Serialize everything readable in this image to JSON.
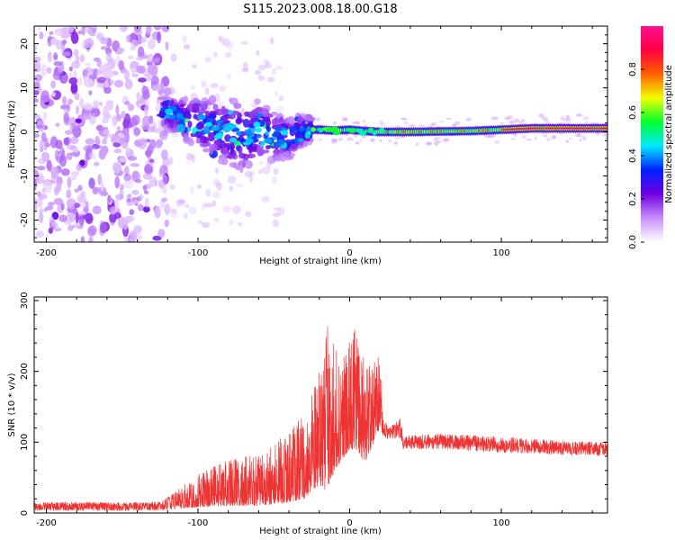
{
  "figure": {
    "title": "S115.2023.008.18.00.G18"
  },
  "chart_data": [
    {
      "type": "heatmap",
      "xlabel": "Height of straight line (km)",
      "ylabel": "Frequency (Hz)",
      "xlim": [
        -208,
        170
      ],
      "ylim": [
        -25,
        24
      ],
      "x_ticks": [
        -200,
        -100,
        0,
        100
      ],
      "y_ticks": [
        -20,
        -10,
        0,
        10,
        20
      ],
      "colorbar": {
        "label": "Normalized spectral amplitude",
        "range": [
          0.0,
          1.0
        ],
        "ticks": [
          0.0,
          0.2,
          0.4,
          0.6,
          0.8
        ],
        "colormap": [
          "#ffffff",
          "#c890ff",
          "#7000e0",
          "#0020ff",
          "#00e8ff",
          "#00ff30",
          "#f0ff00",
          "#ff6000",
          "#ff0040",
          "#ff1090"
        ]
      },
      "description_regions": [
        {
          "x_range": [
            -208,
            -125
          ],
          "freq_range": [
            -25,
            24
          ],
          "amplitude": [
            0.05,
            0.2
          ]
        },
        {
          "x_range": [
            -125,
            -25
          ],
          "freq_range": [
            -13,
            8
          ],
          "amplitude": [
            0.15,
            0.4
          ]
        },
        {
          "x_range": [
            -25,
            30
          ],
          "freq_range": [
            -2,
            2
          ],
          "amplitude": [
            0.4,
            0.8
          ]
        },
        {
          "x_range": [
            30,
            170
          ],
          "freq_range": [
            -1.5,
            2
          ],
          "amplitude": [
            0.5,
            0.95
          ]
        }
      ],
      "ridge": {
        "x": [
          -125,
          -110,
          -100,
          -90,
          -80,
          -70,
          -60,
          -50,
          -40,
          -30,
          -20,
          -10,
          0,
          10,
          20,
          40,
          80,
          120,
          170
        ],
        "frequency": [
          5,
          3,
          2,
          1,
          0,
          -1,
          0.5,
          -1,
          -1.5,
          0.5,
          0.5,
          0.3,
          0.5,
          0.2,
          0,
          0,
          0.2,
          0.8,
          0.8
        ]
      }
    },
    {
      "type": "line",
      "xlabel": "Height of straight line (km)",
      "ylabel": "SNR (10 * v/v)",
      "xlim": [
        -208,
        170
      ],
      "ylim": [
        0,
        305
      ],
      "x_ticks": [
        -200,
        -100,
        0,
        100
      ],
      "y_ticks": [
        0,
        100,
        200,
        300
      ],
      "series_color": "#ee3333",
      "envelope": {
        "x": [
          -208,
          -180,
          -150,
          -125,
          -115,
          -100,
          -80,
          -60,
          -40,
          -30,
          -20,
          -15,
          -10,
          0,
          5,
          10,
          20,
          22,
          25,
          34,
          35,
          60,
          100,
          140,
          170
        ],
        "low": [
          3,
          3,
          3,
          3,
          5,
          8,
          10,
          10,
          15,
          20,
          40,
          30,
          60,
          90,
          90,
          70,
          120,
          110,
          105,
          105,
          90,
          90,
          85,
          82,
          80
        ],
        "high": [
          15,
          16,
          15,
          16,
          30,
          55,
          75,
          85,
          115,
          140,
          200,
          305,
          240,
          250,
          270,
          225,
          220,
          160,
          120,
          135,
          110,
          112,
          108,
          102,
          100
        ]
      }
    }
  ]
}
